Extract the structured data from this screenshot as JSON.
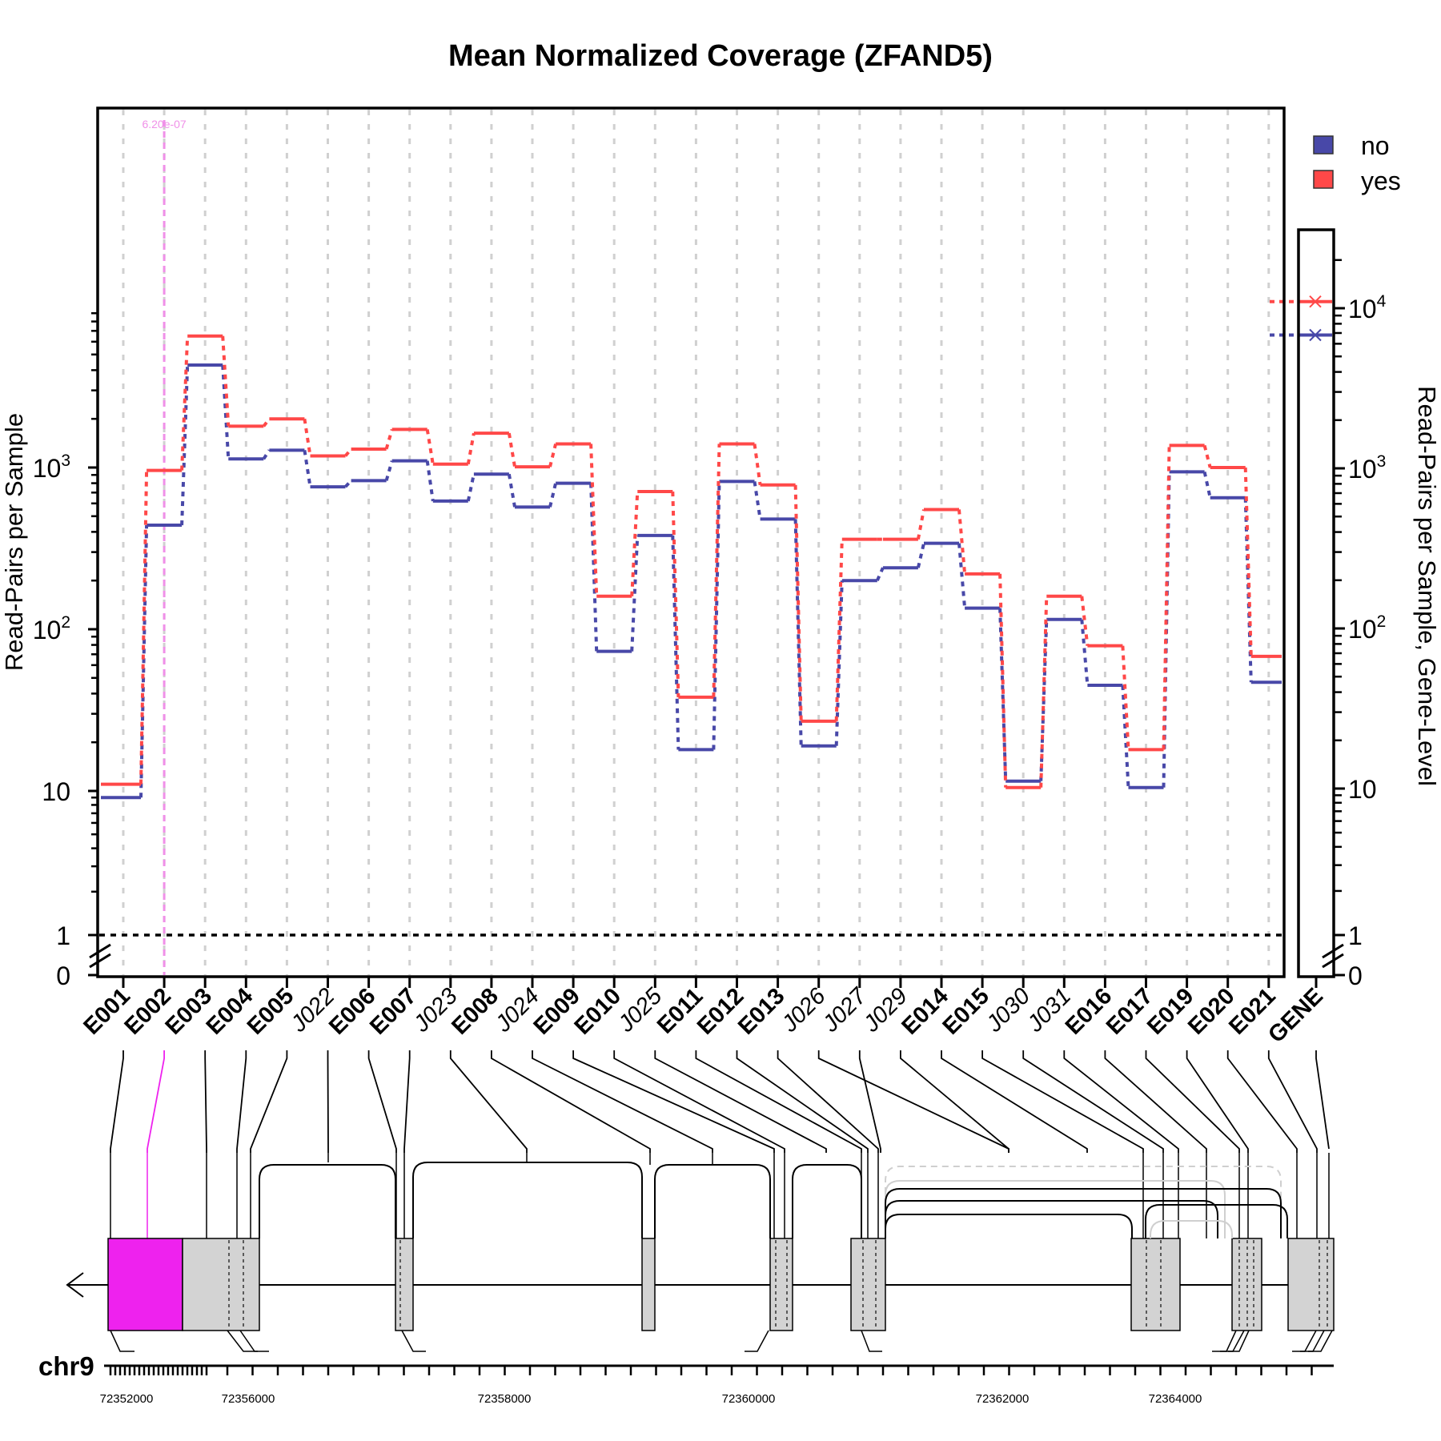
{
  "chart_data": {
    "type": "line",
    "title": "Mean Normalized Coverage (ZFAND5)",
    "ylabel": "Read-Pairs per Sample",
    "ylabel_right": "Read-Pairs per Sample, Gene-Level",
    "y_scale": "log",
    "y_ticks": [
      {
        "value": 0,
        "label": "0"
      },
      {
        "value": 1,
        "label": "1"
      },
      {
        "value": 10,
        "label": "10"
      },
      {
        "value": 100,
        "label": "10",
        "sup": "2"
      },
      {
        "value": 1000,
        "label": "10",
        "sup": "3"
      }
    ],
    "y2_ticks": [
      {
        "value": 0,
        "label": "0"
      },
      {
        "value": 1,
        "label": "1"
      },
      {
        "value": 10,
        "label": "10"
      },
      {
        "value": 100,
        "label": "10",
        "sup": "2"
      },
      {
        "value": 1000,
        "label": "10",
        "sup": "3"
      },
      {
        "value": 10000,
        "label": "10",
        "sup": "4"
      }
    ],
    "features": [
      "E001",
      "E002",
      "E003",
      "E004",
      "E005",
      "J022",
      "E006",
      "E007",
      "J023",
      "E008",
      "J024",
      "E009",
      "E010",
      "J025",
      "E011",
      "E012",
      "E013",
      "J026",
      "J027",
      "J029",
      "E014",
      "E015",
      "J030",
      "J031",
      "E016",
      "E017",
      "E019",
      "E020",
      "E021"
    ],
    "junction_features": [
      "J022",
      "J023",
      "J024",
      "J025",
      "J026",
      "J027",
      "J029",
      "J030",
      "J031"
    ],
    "highlighted_feature": "E002",
    "pvalue_annotation": "6.20e-07",
    "segments": [
      {
        "no": 9,
        "yes": 11
      },
      {
        "no": 440,
        "yes": 960
      },
      {
        "no": 4300,
        "yes": 6500
      },
      {
        "no": 1130,
        "yes": 1800
      },
      {
        "no": 1280,
        "yes": 2000
      },
      {
        "no": 760,
        "yes": 1180
      },
      {
        "no": 830,
        "yes": 1300
      },
      {
        "no": 1100,
        "yes": 1720
      },
      {
        "no": 620,
        "yes": 1050
      },
      {
        "no": 910,
        "yes": 1630
      },
      {
        "no": 570,
        "yes": 1010
      },
      {
        "no": 800,
        "yes": 1400
      },
      {
        "no": 73,
        "yes": 160
      },
      {
        "no": 380,
        "yes": 710
      },
      {
        "no": 18,
        "yes": 38
      },
      {
        "no": 820,
        "yes": 1400
      },
      {
        "no": 480,
        "yes": 780
      },
      {
        "no": 19,
        "yes": 27
      },
      {
        "no": 200,
        "yes": 360
      },
      {
        "no": 240,
        "yes": 360
      },
      {
        "no": 340,
        "yes": 550
      },
      {
        "no": 135,
        "yes": 220
      },
      {
        "no": 11.5,
        "yes": 10.5
      },
      {
        "no": 115,
        "yes": 160
      },
      {
        "no": 45,
        "yes": 79
      },
      {
        "no": 10.5,
        "yes": 18
      },
      {
        "no": 940,
        "yes": 1370
      },
      {
        "no": 650,
        "yes": 1000
      },
      {
        "no": 47,
        "yes": 68
      }
    ],
    "gene_level": {
      "label": "GENE",
      "no": 6800,
      "yes": 11000
    },
    "series": [
      {
        "name": "no",
        "color": "#4848a8"
      },
      {
        "name": "yes",
        "color": "#ff4848"
      }
    ],
    "legend_position": "top-right",
    "grid": "vertical dashed at each feature",
    "reference_line": 1,
    "chromosome": "chr9",
    "strand": "minus",
    "genomic_ticks": [
      "72352000",
      "72356000",
      "72358000",
      "72360000",
      "72362000",
      "72364000"
    ],
    "colors": {
      "highlight": "#ee22ee",
      "pvalue": "#f090e8",
      "exon": "#d3d3d3",
      "grid": "#d0d0d0"
    }
  }
}
